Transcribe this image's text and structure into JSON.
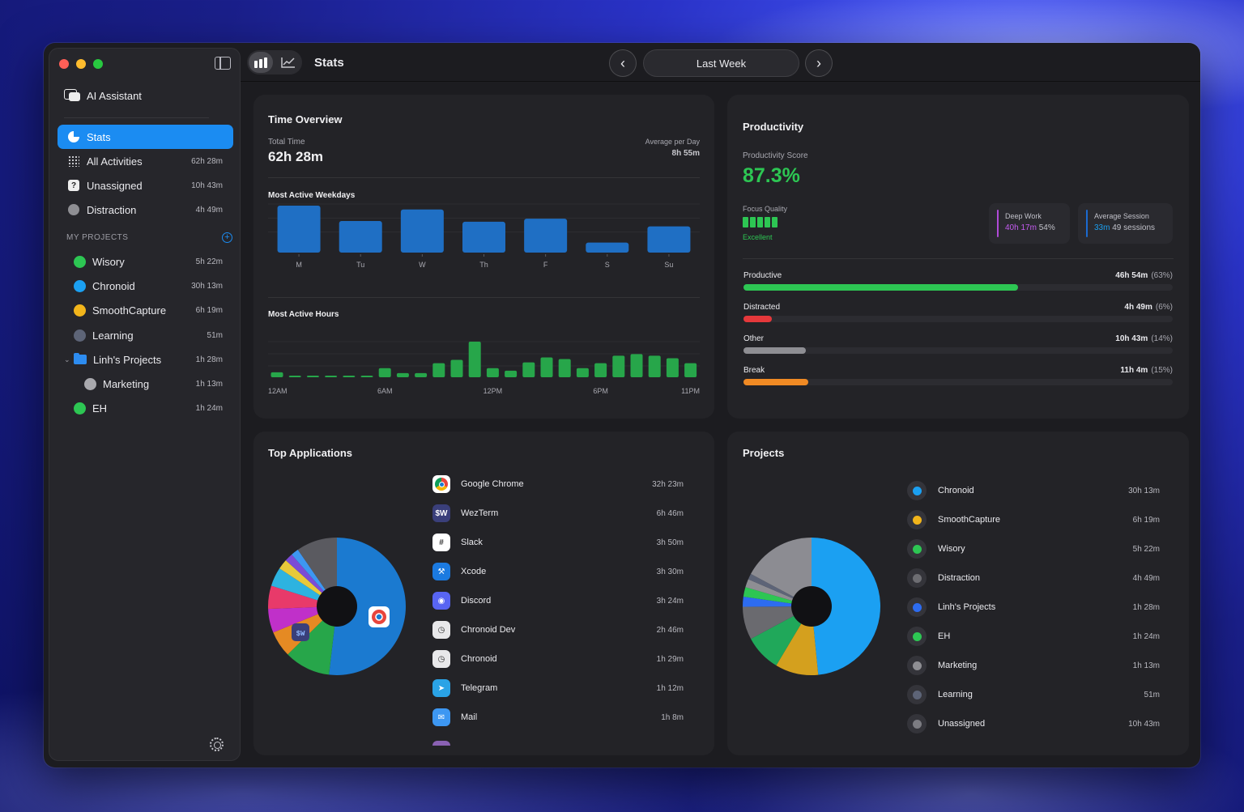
{
  "toolbar": {
    "title": "Stats",
    "period": "Last Week"
  },
  "sidebar": {
    "assistant_label": "AI Assistant",
    "nav": [
      {
        "label": "Stats",
        "value": ""
      },
      {
        "label": "All Activities",
        "value": "62h 28m"
      },
      {
        "label": "Unassigned",
        "value": "10h 43m"
      },
      {
        "label": "Distraction",
        "value": "4h 49m"
      }
    ],
    "section_label": "MY PROJECTS",
    "projects": [
      {
        "label": "Wisory",
        "value": "5h 22m",
        "color": "#2dc653"
      },
      {
        "label": "Chronoid",
        "value": "30h 13m",
        "color": "#1ba0f2"
      },
      {
        "label": "SmoothCapture",
        "value": "6h 19m",
        "color": "#f2b51b"
      },
      {
        "label": "Learning",
        "value": "51m",
        "color": "#5d6477"
      },
      {
        "label": "Linh's Projects",
        "value": "1h 28m",
        "color": "#2d8cf0"
      },
      {
        "label": "Marketing",
        "value": "1h 13m",
        "color": "#a9a9ae"
      },
      {
        "label": "EH",
        "value": "1h 24m",
        "color": "#2dc653"
      }
    ]
  },
  "time_overview": {
    "title": "Time Overview",
    "total_label": "Total Time",
    "total_value": "62h 28m",
    "avg_label": "Average per Day",
    "avg_value": "8h 55m",
    "weekdays_title": "Most Active Weekdays",
    "hours_title": "Most Active Hours"
  },
  "productivity": {
    "title": "Productivity",
    "score_label": "Productivity Score",
    "score": "87.3%",
    "focus_label": "Focus Quality",
    "focus_value": "Excellent",
    "deep_work_label": "Deep Work",
    "deep_work_value": "40h 17m",
    "deep_work_pct": "54%",
    "avg_session_label": "Average Session",
    "avg_session_value": "33m",
    "avg_session_count": "49 sessions",
    "rows": [
      {
        "label": "Productive",
        "value": "46h 54m",
        "pct": "(63%)",
        "fill": 0.64,
        "color": "#2dc653"
      },
      {
        "label": "Distracted",
        "value": "4h 49m",
        "pct": "(6%)",
        "fill": 0.066,
        "color": "#e5383b"
      },
      {
        "label": "Other",
        "value": "10h 43m",
        "pct": "(14%)",
        "fill": 0.146,
        "color": "#8e8e93"
      },
      {
        "label": "Break",
        "value": "11h 4m",
        "pct": "(15%)",
        "fill": 0.151,
        "color": "#f08a24"
      }
    ]
  },
  "top_apps": {
    "title": "Top Applications",
    "apps": [
      {
        "name": "Google Chrome",
        "value": "32h 23m",
        "icon": "chrome-icon",
        "color": "#1b8cf2"
      },
      {
        "name": "WezTerm",
        "value": "6h 46m",
        "icon": "wezterm-icon",
        "color": "#3a3f7a",
        "glyph": "$W"
      },
      {
        "name": "Slack",
        "value": "3h 50m",
        "icon": "slack-icon",
        "color": "#ffffff",
        "glyph": "#"
      },
      {
        "name": "Xcode",
        "value": "3h 30m",
        "icon": "xcode-icon",
        "color": "#1b7ae0",
        "glyph": "⚒"
      },
      {
        "name": "Discord",
        "value": "3h 24m",
        "icon": "discord-icon",
        "color": "#5865f2",
        "glyph": "◉"
      },
      {
        "name": "Chronoid Dev",
        "value": "2h 46m",
        "icon": "chronoid-dev-icon",
        "color": "#e8e8ea",
        "glyph": "◷"
      },
      {
        "name": "Chronoid",
        "value": "1h 29m",
        "icon": "chronoid-icon",
        "color": "#e8e8ea",
        "glyph": "◷"
      },
      {
        "name": "Telegram",
        "value": "1h 12m",
        "icon": "telegram-icon",
        "color": "#2aa3e6",
        "glyph": "➤"
      },
      {
        "name": "Mail",
        "value": "1h 8m",
        "icon": "mail-icon",
        "color": "#3d97f2",
        "glyph": "✉"
      }
    ]
  },
  "projects_card": {
    "title": "Projects",
    "items": [
      {
        "name": "Chronoid",
        "value": "30h 13m",
        "color": "#1ba0f2"
      },
      {
        "name": "SmoothCapture",
        "value": "6h 19m",
        "color": "#f2b51b"
      },
      {
        "name": "Wisory",
        "value": "5h 22m",
        "color": "#2dc653"
      },
      {
        "name": "Distraction",
        "value": "4h 49m",
        "color": "#6d6d72"
      },
      {
        "name": "Linh's Projects",
        "value": "1h 28m",
        "color": "#2d6cf0"
      },
      {
        "name": "EH",
        "value": "1h 24m",
        "color": "#2dc653"
      },
      {
        "name": "Marketing",
        "value": "1h 13m",
        "color": "#8e8e93"
      },
      {
        "name": "Learning",
        "value": "51m",
        "color": "#5d6477"
      },
      {
        "name": "Unassigned",
        "value": "10h 43m",
        "color": "#7c7c82"
      }
    ]
  },
  "chart_data": [
    {
      "type": "bar",
      "title": "Most Active Weekdays",
      "categories": [
        "M",
        "Tu",
        "W",
        "Th",
        "F",
        "S",
        "Su"
      ],
      "values": [
        61,
        41,
        56,
        40,
        44,
        13,
        34
      ],
      "ylim": [
        0,
        62
      ]
    },
    {
      "type": "bar",
      "title": "Most Active Hours",
      "categories": [
        "12AM",
        "1AM",
        "2AM",
        "3AM",
        "4AM",
        "5AM",
        "6AM",
        "7AM",
        "8AM",
        "9AM",
        "10AM",
        "11AM",
        "12PM",
        "1PM",
        "2PM",
        "3PM",
        "4PM",
        "5PM",
        "6PM",
        "7PM",
        "8PM",
        "9PM",
        "10PM",
        "11PM"
      ],
      "tick_labels": [
        "12AM",
        "6AM",
        "12PM",
        "6PM",
        "11PM"
      ],
      "values": [
        6,
        1,
        1,
        1,
        1,
        1,
        11,
        5,
        5,
        17,
        21,
        43,
        11,
        8,
        18,
        24,
        22,
        11,
        17,
        26,
        28,
        26,
        23,
        17
      ],
      "ylim": [
        0,
        43
      ]
    },
    {
      "type": "pie",
      "title": "Top Applications",
      "labels": [
        "Google Chrome",
        "WezTerm",
        "Slack",
        "Xcode",
        "Discord",
        "Chronoid Dev",
        "Chronoid",
        "Telegram",
        "Mail",
        "Other"
      ],
      "values": [
        32.38,
        6.77,
        3.83,
        3.5,
        3.4,
        2.77,
        1.48,
        1.2,
        1.13,
        6.0
      ],
      "colors": [
        "#1b7ad0",
        "#27a64a",
        "#e58a23",
        "#c030c9",
        "#e83a6a",
        "#2db3e0",
        "#e8c93a",
        "#7b4bd6",
        "#3d97f2",
        "#5a5a60"
      ]
    },
    {
      "type": "pie",
      "title": "Projects",
      "labels": [
        "Chronoid",
        "SmoothCapture",
        "Wisory",
        "Distraction",
        "Linh's Projects",
        "EH",
        "Marketing",
        "Learning",
        "Unassigned"
      ],
      "values": [
        30.22,
        6.32,
        5.37,
        4.82,
        1.47,
        1.4,
        1.22,
        0.85,
        10.72
      ],
      "colors": [
        "#1ba0f2",
        "#d4a01e",
        "#20a85a",
        "#6a6a6f",
        "#2d6cf0",
        "#2dc653",
        "#8e8e93",
        "#5d6477",
        "#8c8c92"
      ]
    }
  ]
}
